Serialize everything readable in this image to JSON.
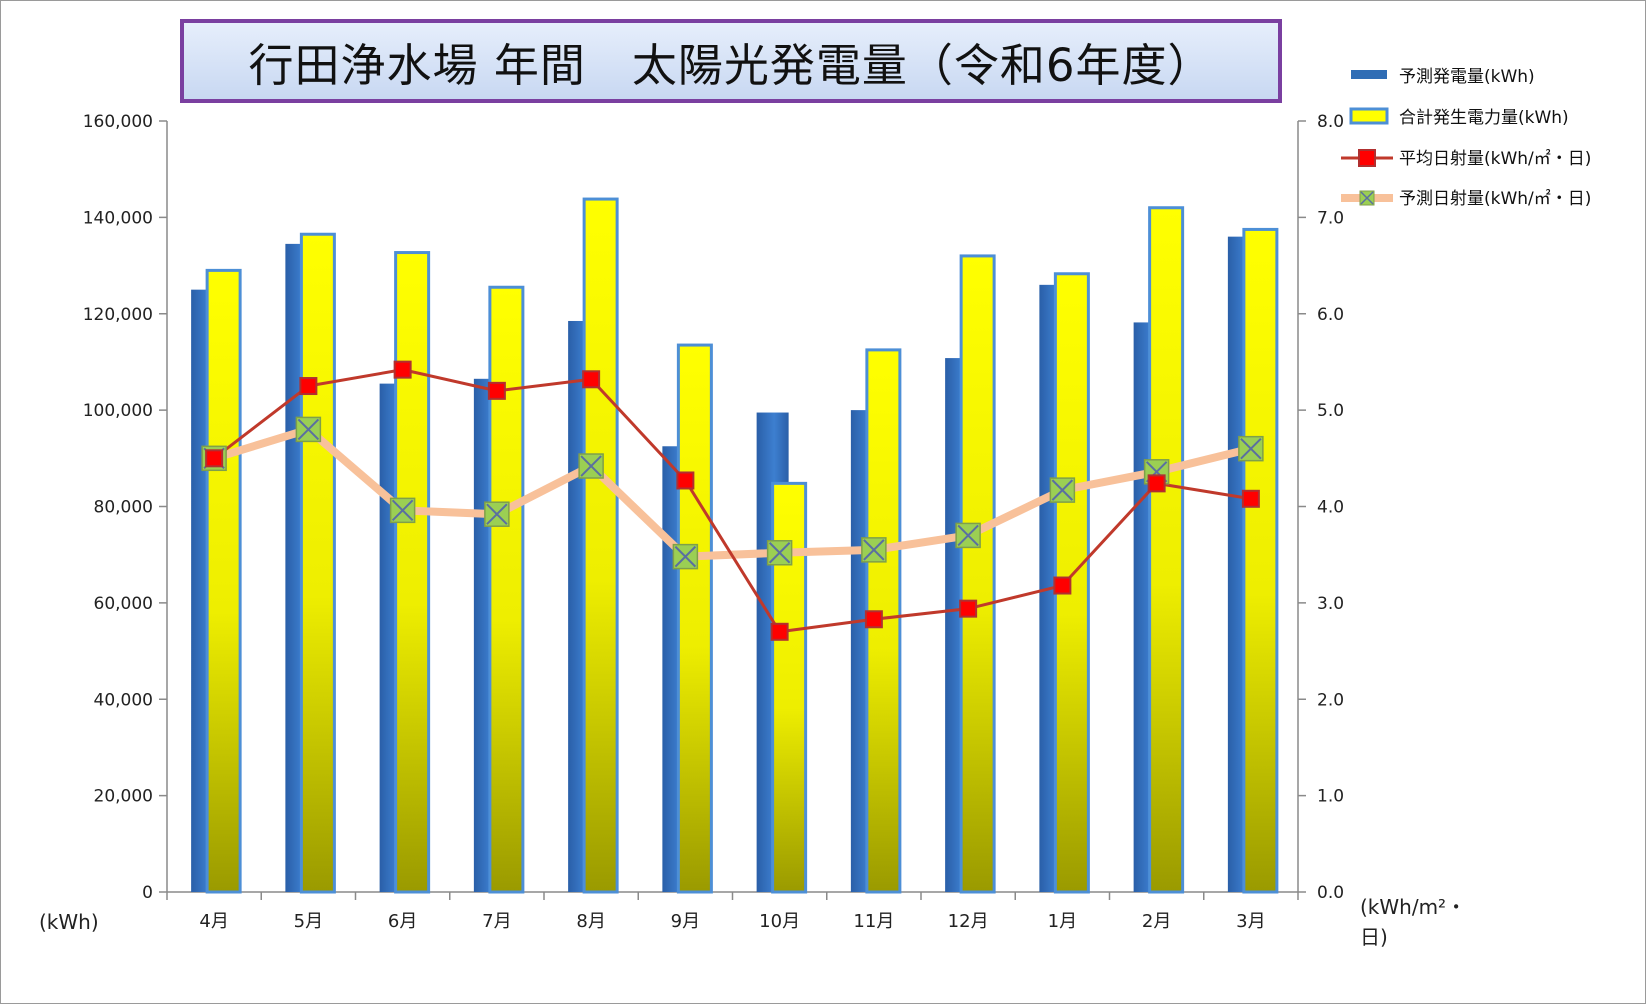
{
  "chart_data": {
    "type": "bar",
    "title": "行田浄水場 年間　太陽光発電量（令和6年度）",
    "categories": [
      "4月",
      "5月",
      "6月",
      "7月",
      "8月",
      "9月",
      "10月",
      "11月",
      "12月",
      "1月",
      "2月",
      "3月"
    ],
    "series": [
      {
        "name": "予測発電量(kWh)",
        "type": "bar",
        "axis": "left",
        "color": "#2f6db5",
        "values": [
          125000,
          134500,
          105500,
          106500,
          118500,
          92500,
          99500,
          100000,
          110800,
          126000,
          118200,
          136000
        ]
      },
      {
        "name": "合計発生電力量(kWh)",
        "type": "bar",
        "axis": "left",
        "color": "#ffff00",
        "values": [
          129000,
          136500,
          132700,
          125500,
          143800,
          113500,
          84800,
          112500,
          132000,
          128300,
          142000,
          137500
        ]
      },
      {
        "name": "平均日射量(kWh/㎡・日)",
        "type": "line",
        "axis": "right",
        "color": "#c0392b",
        "values": [
          4.5,
          5.25,
          5.42,
          5.2,
          5.32,
          4.27,
          2.7,
          2.83,
          2.94,
          3.18,
          4.24,
          4.08
        ]
      },
      {
        "name": "予測日射量(kWh/㎡・日)",
        "type": "line",
        "axis": "right",
        "color": "#f8c19a",
        "values": [
          4.5,
          4.8,
          3.96,
          3.92,
          4.42,
          3.48,
          3.52,
          3.55,
          3.7,
          4.17,
          4.36,
          4.6
        ]
      }
    ],
    "y_left": {
      "unit": "(kWh)",
      "range": [
        0,
        160000
      ],
      "ticks": [
        "0",
        "20,000",
        "40,000",
        "60,000",
        "80,000",
        "100,000",
        "120,000",
        "140,000",
        "160,000"
      ]
    },
    "y_right": {
      "unit_line1": "(kWh/m²・",
      "unit_line2": "日)",
      "range": [
        0,
        8
      ],
      "ticks": [
        "0.0",
        "1.0",
        "2.0",
        "3.0",
        "4.0",
        "5.0",
        "6.0",
        "7.0",
        "8.0"
      ]
    },
    "grid": false,
    "legend_position": "right"
  }
}
